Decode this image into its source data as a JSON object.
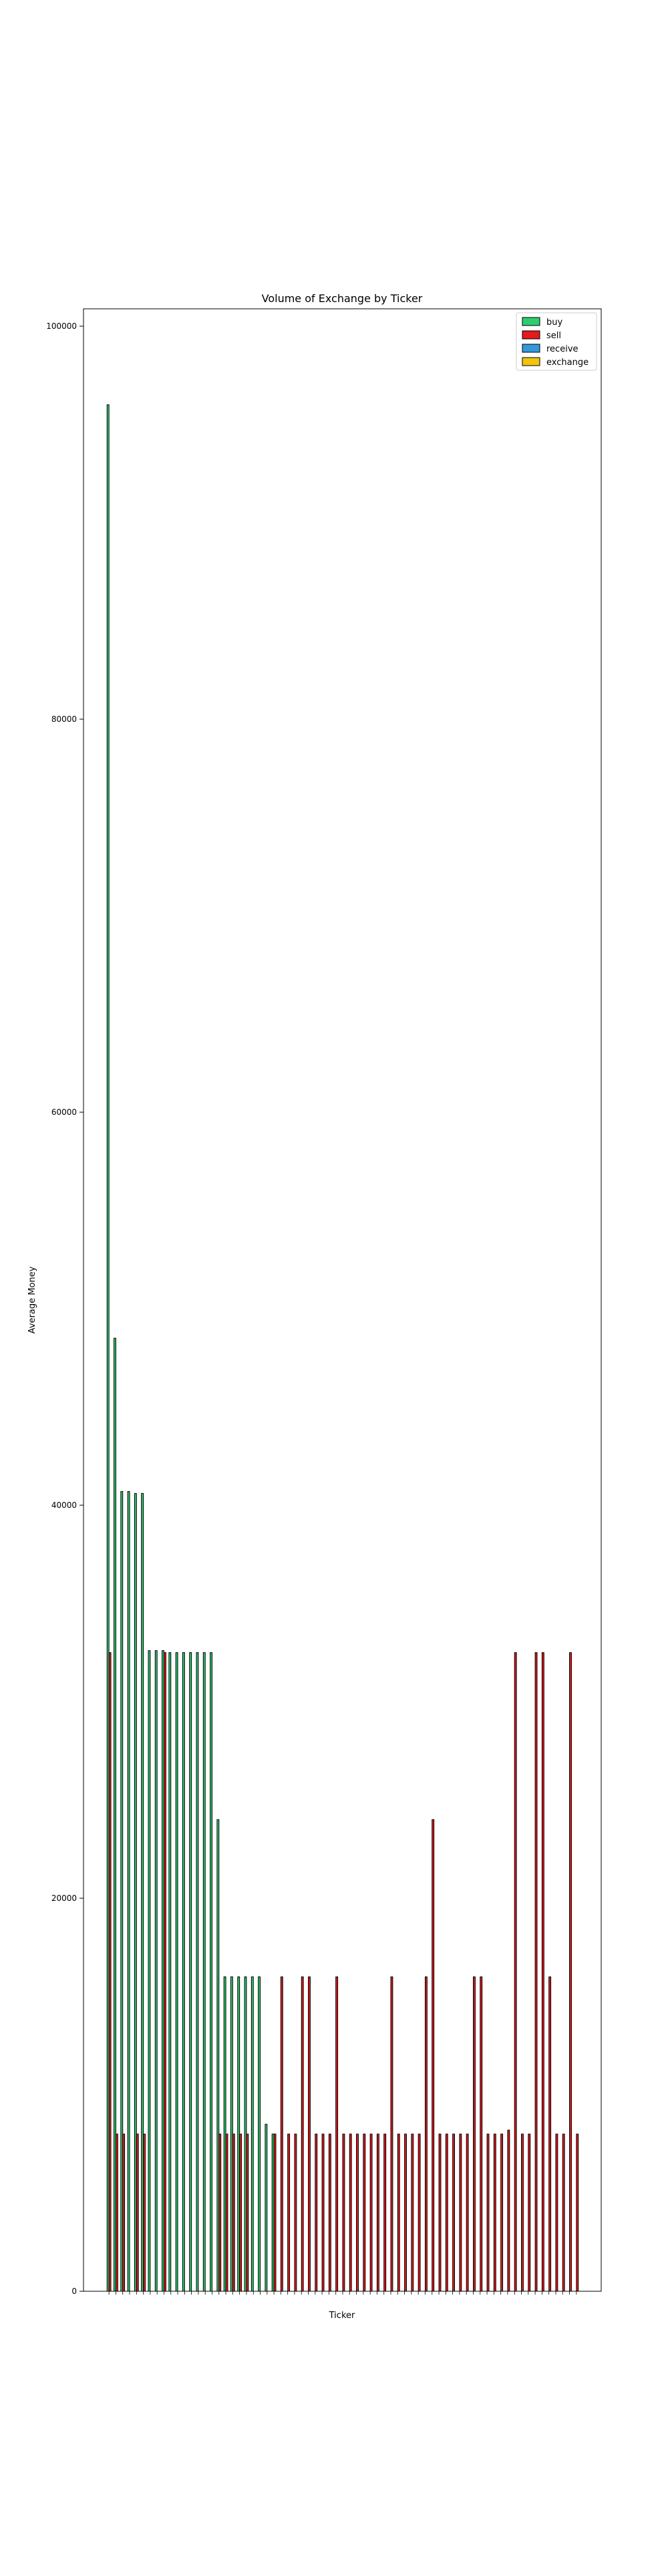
{
  "chart_data": {
    "type": "bar",
    "title": "Volume of Exchange by Ticker",
    "xlabel": "Ticker",
    "ylabel": "Average Money",
    "ylim": [
      0,
      100000
    ],
    "yticks": [
      0,
      20000,
      40000,
      60000,
      80000,
      100000
    ],
    "legend_position": "top-right",
    "grid": false,
    "colors": {
      "buy": "#2ecc71",
      "sell": "#e41a1c",
      "receive": "#3498db",
      "exchange": "#f1c40f",
      "edge": "#000000"
    },
    "series": [
      {
        "name": "buy",
        "values": [
          96000,
          48500,
          40700,
          40700,
          40600,
          40600,
          32600,
          32600,
          32600,
          32500,
          32500,
          32500,
          32500,
          32500,
          32500,
          32500,
          24000,
          16000,
          16000,
          16000,
          16000,
          16000,
          16000,
          8500,
          8000,
          0,
          0,
          0,
          0,
          0,
          0,
          0,
          0,
          0,
          0,
          0,
          0,
          0,
          0,
          0,
          0,
          0,
          0,
          0,
          0,
          0,
          0,
          0,
          0,
          0,
          0,
          0,
          0,
          0,
          0,
          0,
          0,
          0,
          0,
          0,
          0,
          0,
          0,
          0,
          0,
          0,
          0,
          0,
          0
        ]
      },
      {
        "name": "sell",
        "values": [
          32500,
          8000,
          8000,
          0,
          8000,
          8000,
          0,
          0,
          32500,
          0,
          0,
          0,
          0,
          0,
          0,
          0,
          8000,
          8000,
          8000,
          8000,
          8000,
          0,
          0,
          0,
          8000,
          16000,
          8000,
          8000,
          16000,
          16000,
          8000,
          8000,
          8000,
          16000,
          8000,
          8000,
          8000,
          8000,
          8000,
          8000,
          8000,
          16000,
          8000,
          8000,
          8000,
          8000,
          16000,
          24000,
          8000,
          8000,
          8000,
          8000,
          8000,
          16000,
          16000,
          8000,
          8000,
          8000,
          8200,
          32500,
          8000,
          8000,
          32500,
          32500,
          16000,
          8000,
          8000,
          32500,
          8000
        ]
      }
    ]
  }
}
